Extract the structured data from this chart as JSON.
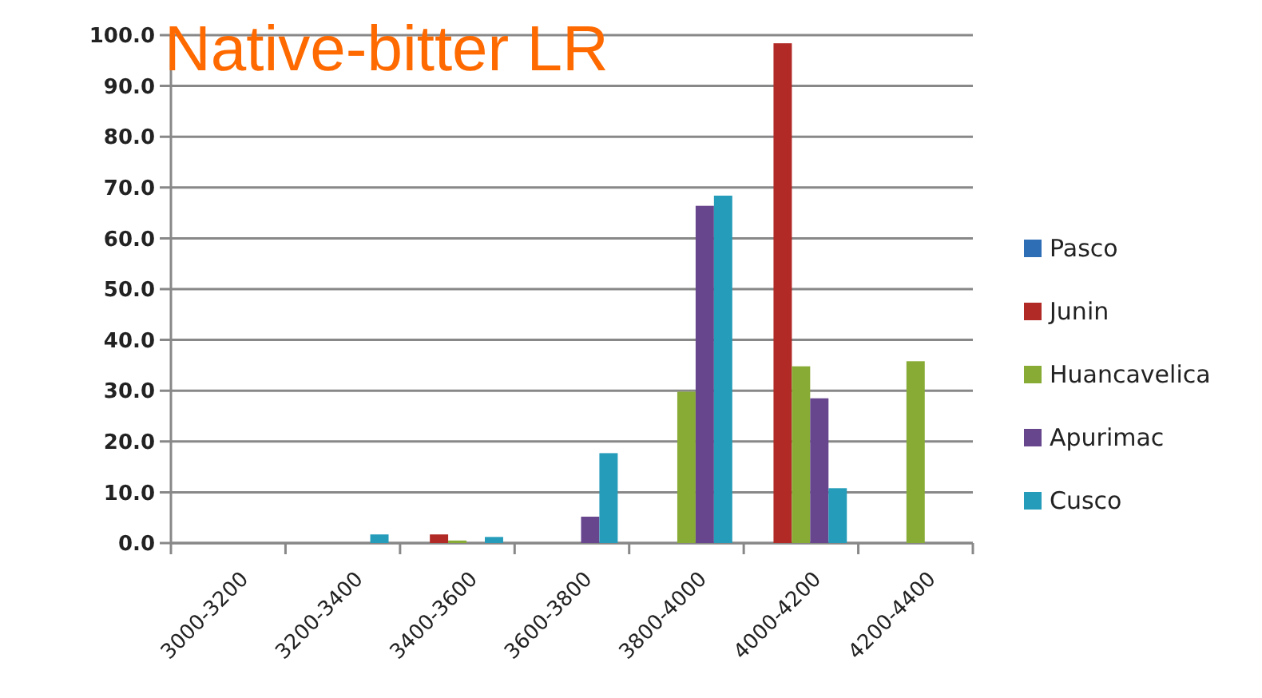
{
  "chart_data": {
    "type": "bar",
    "title": "Native-bitter LR",
    "categories": [
      "3000-3200",
      "3200-3400",
      "3400-3600",
      "3600-3800",
      "3800-4000",
      "4000-4200",
      "4200-4400"
    ],
    "series": [
      {
        "name": "Pasco",
        "color": "#2e6eb5",
        "values": [
          0,
          0,
          0,
          0,
          0,
          0,
          0
        ]
      },
      {
        "name": "Junin",
        "color": "#b22a26",
        "values": [
          0,
          0,
          1.7,
          0,
          0,
          98.4,
          0
        ]
      },
      {
        "name": "Huancavelica",
        "color": "#88ab35",
        "values": [
          0,
          0,
          0.5,
          0,
          29.8,
          34.8,
          35.8
        ]
      },
      {
        "name": "Apurimac",
        "color": "#67468e",
        "values": [
          0,
          0,
          0,
          5.2,
          66.4,
          28.5,
          0
        ]
      },
      {
        "name": "Cusco",
        "color": "#249cba",
        "values": [
          0,
          1.7,
          1.2,
          17.7,
          68.4,
          10.8,
          0
        ]
      }
    ],
    "ylim": [
      0,
      100
    ],
    "yticks": [
      {
        "value": 0,
        "label": "0.0"
      },
      {
        "value": 10,
        "label": "10.0"
      },
      {
        "value": 20,
        "label": "20.0"
      },
      {
        "value": 30,
        "label": "30.0"
      },
      {
        "value": 40,
        "label": "40.0"
      },
      {
        "value": 50,
        "label": "50.0"
      },
      {
        "value": 60,
        "label": "60.0"
      },
      {
        "value": 70,
        "label": "70.0"
      },
      {
        "value": 80,
        "label": "80.0"
      },
      {
        "value": 90,
        "label": "90.0"
      },
      {
        "value": 100,
        "label": "100.0"
      }
    ],
    "grid": "y",
    "legend": "right"
  }
}
